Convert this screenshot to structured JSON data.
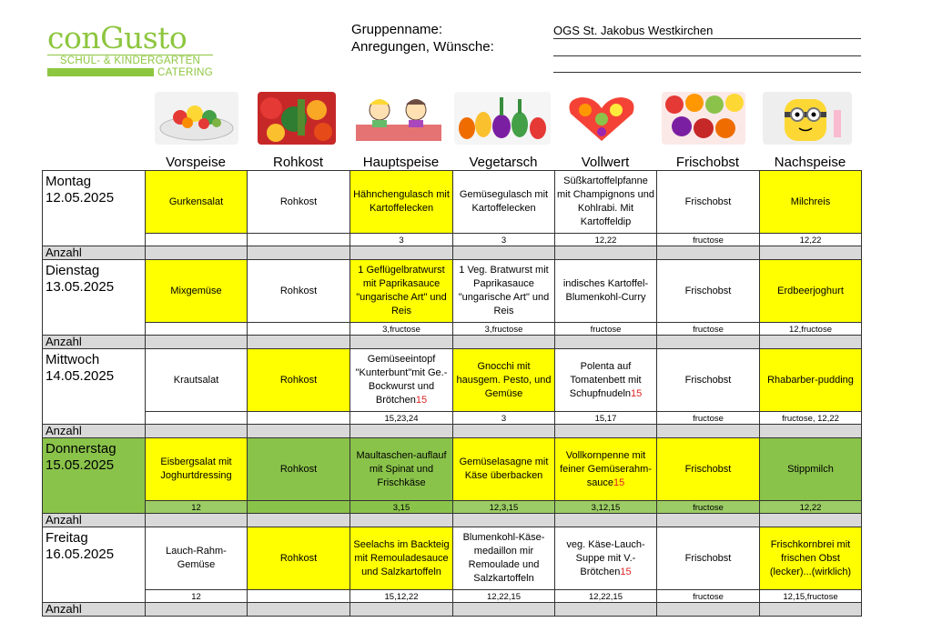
{
  "logo": {
    "name": "conGusto",
    "subline": "SCHUL- & KINDERGARTEN",
    "catering": "CATERING"
  },
  "header": {
    "group_label": "Gruppenname:",
    "wishes_label": "Anregungen, Wünsche:",
    "group_value": "OGS St. Jakobus Westkirchen"
  },
  "columns": [
    "Vorspeise",
    "Rohkost",
    "Hauptspeise",
    "Vegetarsch",
    "Vollwert",
    "Frischobst",
    "Nachspeise"
  ],
  "column_images": [
    "salad-bowl",
    "vegetables",
    "kids-eating",
    "vegetable-figures",
    "fruit-heart",
    "fruit-pile",
    "minion-cake"
  ],
  "colors": {
    "yellow": "#ffff00",
    "green": "#8ac34a",
    "gray": "#d9d9d9",
    "red": "#dd2222"
  },
  "anzahl_label": "Anzahl",
  "days": [
    {
      "name": "Montag",
      "date": "12.05.2025",
      "meals": [
        "Gurkensalat",
        "Rohkost",
        "Hähnchengulasch mit Kartoffelecken",
        "Gemüsegulasch mit Kartoffelecken",
        "Süßkartoffelpfanne mit Champignons und Kohlrabi. Mit Kartoffeldip",
        "Frischobst",
        "Milchreis"
      ],
      "codes": [
        "",
        "",
        "3",
        "3",
        "12,22",
        "fructose",
        "12,22"
      ]
    },
    {
      "name": "Dienstag",
      "date": "13.05.2025",
      "meals": [
        "Mixgemüse",
        "Rohkost",
        "1 Geflügelbratwurst mit Paprikasauce \"ungarische Art\" und Reis",
        "1 Veg. Bratwurst mit Paprikasauce \"ungarische Art\" und Reis",
        "indisches Kartoffel-Blumenkohl-Curry",
        "Frischobst",
        "Erdbeerjoghurt"
      ],
      "codes": [
        "",
        "",
        "3,fructose",
        "3,fructose",
        "fructose",
        "fructose",
        "12,fructose"
      ]
    },
    {
      "name": "Mittwoch",
      "date": "14.05.2025",
      "meals": [
        "Krautsalat",
        "Rohkost",
        "Gemüseeintopf \"Kunterbunt\"mit Ge.-Bockwurst und Brötchen",
        "Gnocchi mit hausgem. Pesto, und Gemüse",
        "Polenta auf Tomatenbett mit Schupfnudeln",
        "Frischobst",
        "Rhabarber-pudding"
      ],
      "meal_marks": [
        "",
        "",
        "15",
        "",
        "15",
        "",
        ""
      ],
      "codes": [
        "",
        "",
        "15,23,24",
        "3",
        "15,17",
        "fructose",
        "fructose, 12,22"
      ]
    },
    {
      "name": "Donnerstag",
      "date": "15.05.2025",
      "meals": [
        "Eisbergsalat mit Joghurtdressing",
        "Rohkost",
        "Maultaschen-auflauf mit Spinat und Frischkäse",
        "Gemüselasagne mit Käse überbacken",
        "Vollkornpenne mit feiner Gemüserahm-sauce",
        "Frischobst",
        "Stippmilch"
      ],
      "meal_marks": [
        "",
        "",
        "",
        "",
        "15",
        "",
        ""
      ],
      "codes": [
        "12",
        "",
        "3,15",
        "12,3,15",
        "3,12,15",
        "fructose",
        "12,22"
      ]
    },
    {
      "name": "Freitag",
      "date": "16.05.2025",
      "meals": [
        "Lauch-Rahm-Gemüse",
        "Rohkost",
        "Seelachs im Backteig mit Remouladesauce und Salzkartoffeln",
        "Blumenkohl-Käse-medaillon mir Remoulade und Salzkartoffeln",
        "veg. Käse-Lauch-Suppe mit V.-Brötchen",
        "Frischobst",
        "Frischkornbrei mit frischen Obst (lecker)...(wirklich)"
      ],
      "meal_marks": [
        "",
        "",
        "",
        "",
        "15",
        "",
        ""
      ],
      "codes": [
        "12",
        "",
        "15,12,22",
        "12,22,15",
        "12,22,15",
        "fructose",
        "12,15,fructose"
      ]
    }
  ]
}
